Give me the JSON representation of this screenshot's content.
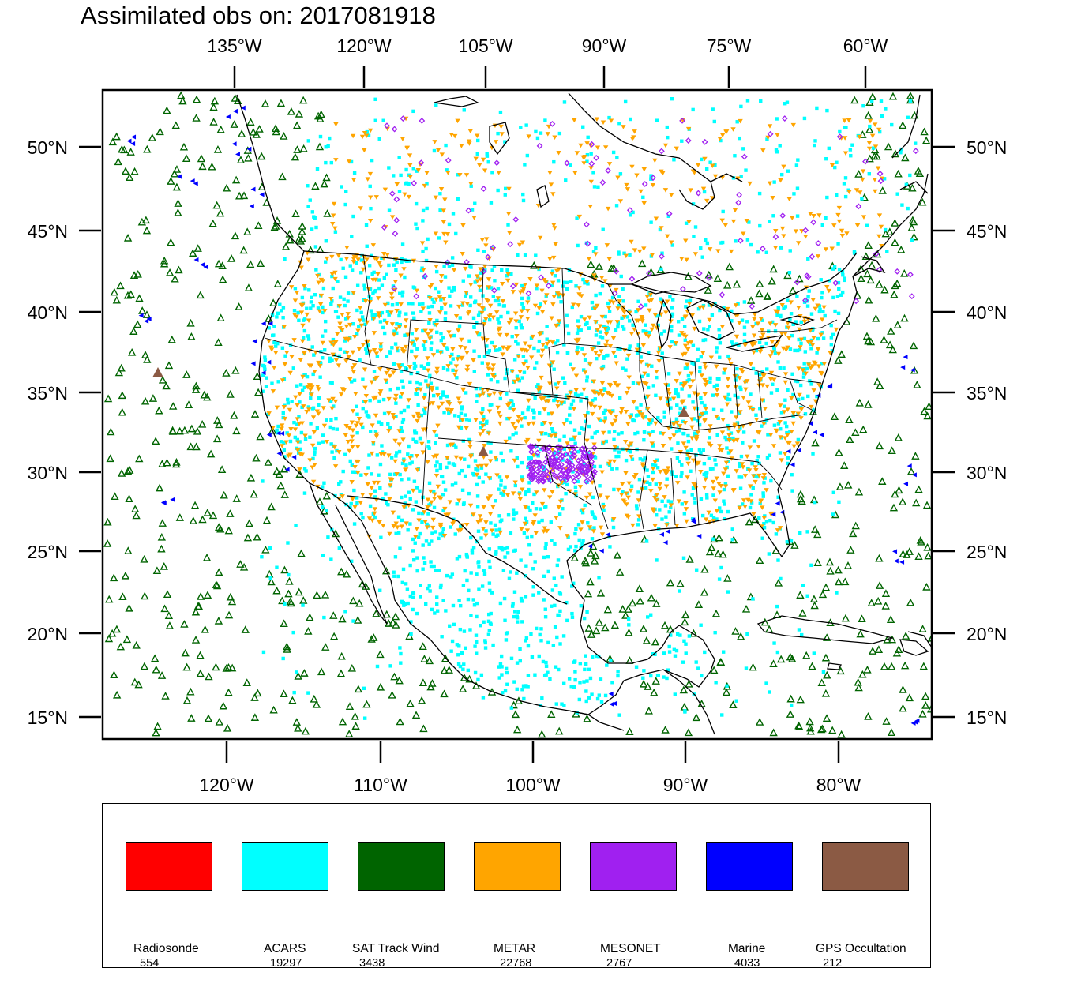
{
  "title": "Assimilated obs on: 2017081918",
  "map": {
    "top_lon_labels": [
      "135°W",
      "120°W",
      "105°W",
      "90°W",
      "75°W",
      "60°W"
    ],
    "bottom_lon_labels": [
      "120°W",
      "110°W",
      "100°W",
      "90°W",
      "80°W"
    ],
    "left_lat_labels": [
      "50°N",
      "45°N",
      "40°N",
      "35°N",
      "30°N",
      "25°N",
      "20°N",
      "15°N"
    ],
    "right_lat_labels": [
      "50°N",
      "45°N",
      "40°N",
      "35°N",
      "30°N",
      "25°N",
      "20°N",
      "15°N"
    ]
  },
  "legend": [
    {
      "label": "Radiosonde",
      "count": "554",
      "color": "#ff0000"
    },
    {
      "label": "ACARS",
      "count": "19297",
      "color": "#00ffff"
    },
    {
      "label": "SAT Track Wind",
      "count": "3438",
      "color": "#006400"
    },
    {
      "label": "METAR",
      "count": "22768",
      "color": "#ffa500"
    },
    {
      "label": "MESONET",
      "count": "2767",
      "color": "#a020f0"
    },
    {
      "label": "Marine",
      "count": "4033",
      "color": "#0000ff"
    },
    {
      "label": "GPS Occultation",
      "count": "212",
      "color": "#8b5a44"
    }
  ]
}
